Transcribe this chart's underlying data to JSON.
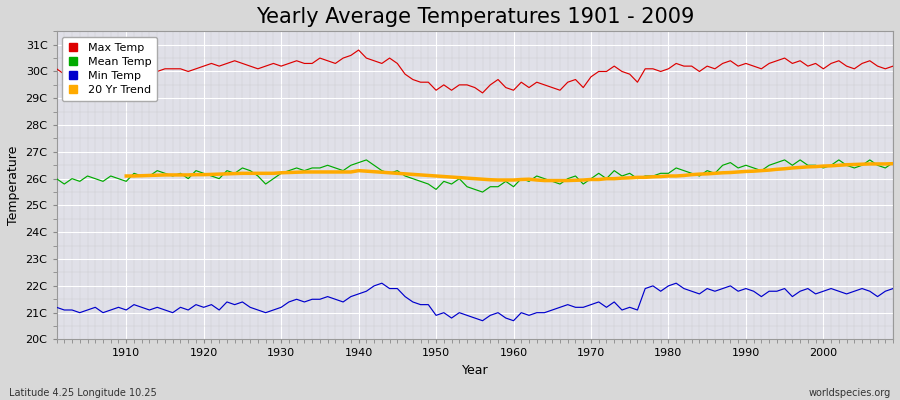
{
  "title": "Yearly Average Temperatures 1901 - 2009",
  "xlabel": "Year",
  "ylabel": "Temperature",
  "subtitle_left": "Latitude 4.25 Longitude 10.25",
  "subtitle_right": "worldspecies.org",
  "years": [
    1901,
    1902,
    1903,
    1904,
    1905,
    1906,
    1907,
    1908,
    1909,
    1910,
    1911,
    1912,
    1913,
    1914,
    1915,
    1916,
    1917,
    1918,
    1919,
    1920,
    1921,
    1922,
    1923,
    1924,
    1925,
    1926,
    1927,
    1928,
    1929,
    1930,
    1931,
    1932,
    1933,
    1934,
    1935,
    1936,
    1937,
    1938,
    1939,
    1940,
    1941,
    1942,
    1943,
    1944,
    1945,
    1946,
    1947,
    1948,
    1949,
    1950,
    1951,
    1952,
    1953,
    1954,
    1955,
    1956,
    1957,
    1958,
    1959,
    1960,
    1961,
    1962,
    1963,
    1964,
    1965,
    1966,
    1967,
    1968,
    1969,
    1970,
    1971,
    1972,
    1973,
    1974,
    1975,
    1976,
    1977,
    1978,
    1979,
    1980,
    1981,
    1982,
    1983,
    1984,
    1985,
    1986,
    1987,
    1988,
    1989,
    1990,
    1991,
    1992,
    1993,
    1994,
    1995,
    1996,
    1997,
    1998,
    1999,
    2000,
    2001,
    2002,
    2003,
    2004,
    2005,
    2006,
    2007,
    2008,
    2009
  ],
  "max_temp": [
    30.1,
    29.9,
    30.0,
    30.0,
    30.0,
    30.0,
    30.0,
    30.0,
    30.0,
    30.0,
    30.0,
    30.0,
    30.0,
    30.0,
    30.1,
    30.1,
    30.1,
    30.0,
    30.1,
    30.2,
    30.3,
    30.2,
    30.3,
    30.4,
    30.3,
    30.2,
    30.1,
    30.2,
    30.3,
    30.2,
    30.3,
    30.4,
    30.3,
    30.3,
    30.5,
    30.4,
    30.3,
    30.5,
    30.6,
    30.8,
    30.5,
    30.4,
    30.3,
    30.5,
    30.3,
    29.9,
    29.7,
    29.6,
    29.6,
    29.3,
    29.5,
    29.3,
    29.5,
    29.5,
    29.4,
    29.2,
    29.5,
    29.7,
    29.4,
    29.3,
    29.6,
    29.4,
    29.6,
    29.5,
    29.4,
    29.3,
    29.6,
    29.7,
    29.4,
    29.8,
    30.0,
    30.0,
    30.2,
    30.0,
    29.9,
    29.6,
    30.1,
    30.1,
    30.0,
    30.1,
    30.3,
    30.2,
    30.2,
    30.0,
    30.2,
    30.1,
    30.3,
    30.4,
    30.2,
    30.3,
    30.2,
    30.1,
    30.3,
    30.4,
    30.5,
    30.3,
    30.4,
    30.2,
    30.3,
    30.1,
    30.3,
    30.4,
    30.2,
    30.1,
    30.3,
    30.4,
    30.2,
    30.1,
    30.2
  ],
  "mean_temp": [
    26.0,
    25.8,
    26.0,
    25.9,
    26.1,
    26.0,
    25.9,
    26.1,
    26.0,
    25.9,
    26.2,
    26.1,
    26.1,
    26.3,
    26.2,
    26.1,
    26.2,
    26.0,
    26.3,
    26.2,
    26.1,
    26.0,
    26.3,
    26.2,
    26.4,
    26.3,
    26.1,
    25.8,
    26.0,
    26.2,
    26.3,
    26.4,
    26.3,
    26.4,
    26.4,
    26.5,
    26.4,
    26.3,
    26.5,
    26.6,
    26.7,
    26.5,
    26.3,
    26.2,
    26.3,
    26.1,
    26.0,
    25.9,
    25.8,
    25.6,
    25.9,
    25.8,
    26.0,
    25.7,
    25.6,
    25.5,
    25.7,
    25.7,
    25.9,
    25.7,
    26.0,
    25.9,
    26.1,
    26.0,
    25.9,
    25.8,
    26.0,
    26.1,
    25.8,
    26.0,
    26.2,
    26.0,
    26.3,
    26.1,
    26.2,
    26.0,
    26.1,
    26.1,
    26.2,
    26.2,
    26.4,
    26.3,
    26.2,
    26.1,
    26.3,
    26.2,
    26.5,
    26.6,
    26.4,
    26.5,
    26.4,
    26.3,
    26.5,
    26.6,
    26.7,
    26.5,
    26.7,
    26.5,
    26.5,
    26.4,
    26.5,
    26.7,
    26.5,
    26.4,
    26.5,
    26.7,
    26.5,
    26.4,
    26.6
  ],
  "min_temp": [
    21.2,
    21.1,
    21.1,
    21.0,
    21.1,
    21.2,
    21.0,
    21.1,
    21.2,
    21.1,
    21.3,
    21.2,
    21.1,
    21.2,
    21.1,
    21.0,
    21.2,
    21.1,
    21.3,
    21.2,
    21.3,
    21.1,
    21.4,
    21.3,
    21.4,
    21.2,
    21.1,
    21.0,
    21.1,
    21.2,
    21.4,
    21.5,
    21.4,
    21.5,
    21.5,
    21.6,
    21.5,
    21.4,
    21.6,
    21.7,
    21.8,
    22.0,
    22.1,
    21.9,
    21.9,
    21.6,
    21.4,
    21.3,
    21.3,
    20.9,
    21.0,
    20.8,
    21.0,
    20.9,
    20.8,
    20.7,
    20.9,
    21.0,
    20.8,
    20.7,
    21.0,
    20.9,
    21.0,
    21.0,
    21.1,
    21.2,
    21.3,
    21.2,
    21.2,
    21.3,
    21.4,
    21.2,
    21.4,
    21.1,
    21.2,
    21.1,
    21.9,
    22.0,
    21.8,
    22.0,
    22.1,
    21.9,
    21.8,
    21.7,
    21.9,
    21.8,
    21.9,
    22.0,
    21.8,
    21.9,
    21.8,
    21.6,
    21.8,
    21.8,
    21.9,
    21.6,
    21.8,
    21.9,
    21.7,
    21.8,
    21.9,
    21.8,
    21.7,
    21.8,
    21.9,
    21.8,
    21.6,
    21.8,
    21.9
  ],
  "trend_years": [
    1910,
    1911,
    1912,
    1913,
    1914,
    1915,
    1916,
    1917,
    1918,
    1919,
    1920,
    1921,
    1922,
    1923,
    1924,
    1925,
    1926,
    1927,
    1928,
    1929,
    1930,
    1931,
    1932,
    1933,
    1934,
    1935,
    1936,
    1937,
    1938,
    1939,
    1940,
    1941,
    1942,
    1943,
    1944,
    1945,
    1946,
    1947,
    1948,
    1949,
    1950,
    1951,
    1952,
    1953,
    1954,
    1955,
    1956,
    1957,
    1958,
    1959,
    1960,
    1961,
    1962,
    1963,
    1964,
    1965,
    1966,
    1967,
    1968,
    1969,
    1970,
    1971,
    1972,
    1973,
    1974,
    1975,
    1976,
    1977,
    1978,
    1979,
    1980,
    1981,
    1982,
    1983,
    1984,
    1985,
    1986,
    1987,
    1988,
    1989,
    1990,
    1991,
    1992,
    1993,
    1994,
    1995,
    1996,
    1997,
    1998,
    1999,
    2000,
    2001,
    2002,
    2003,
    2004,
    2005,
    2006,
    2007,
    2008,
    2009
  ],
  "trend_vals": [
    26.1,
    26.1,
    26.11,
    26.12,
    26.13,
    26.14,
    26.14,
    26.14,
    26.14,
    26.15,
    26.15,
    26.16,
    26.17,
    26.18,
    26.19,
    26.2,
    26.2,
    26.2,
    26.2,
    26.2,
    26.22,
    26.23,
    26.24,
    26.25,
    26.25,
    26.25,
    26.25,
    26.25,
    26.25,
    26.25,
    26.3,
    26.28,
    26.26,
    26.24,
    26.22,
    26.2,
    26.18,
    26.16,
    26.14,
    26.12,
    26.1,
    26.08,
    26.06,
    26.04,
    26.02,
    26.0,
    25.98,
    25.96,
    25.95,
    25.95,
    25.95,
    25.97,
    25.98,
    25.95,
    25.93,
    25.93,
    25.93,
    25.93,
    25.94,
    25.95,
    25.97,
    25.97,
    26.0,
    26.0,
    26.02,
    26.03,
    26.05,
    26.05,
    26.07,
    26.08,
    26.1,
    26.1,
    26.12,
    26.15,
    26.17,
    26.18,
    26.2,
    26.22,
    26.23,
    26.25,
    26.27,
    26.28,
    26.3,
    26.32,
    26.35,
    26.37,
    26.4,
    26.42,
    26.44,
    26.45,
    26.47,
    26.48,
    26.5,
    26.52,
    26.53,
    26.54,
    26.55,
    26.55,
    26.55,
    26.56
  ],
  "ylim": [
    20.0,
    31.5
  ],
  "yticks": [
    20,
    21,
    22,
    23,
    24,
    25,
    26,
    27,
    28,
    29,
    30,
    31
  ],
  "ytick_labels": [
    "20C",
    "21C",
    "22C",
    "23C",
    "24C",
    "25C",
    "26C",
    "27C",
    "28C",
    "29C",
    "30C",
    "31C"
  ],
  "xticks": [
    1910,
    1920,
    1930,
    1940,
    1950,
    1960,
    1970,
    1980,
    1990,
    2000
  ],
  "max_color": "#dd0000",
  "mean_color": "#00aa00",
  "min_color": "#0000cc",
  "trend_color": "#ffaa00",
  "bg_outer": "#d8d8d8",
  "plot_bg": "#e0e0e8",
  "grid_color": "#ffffff",
  "title_fontsize": 15,
  "legend_labels": [
    "Max Temp",
    "Mean Temp",
    "Min Temp",
    "20 Yr Trend"
  ]
}
